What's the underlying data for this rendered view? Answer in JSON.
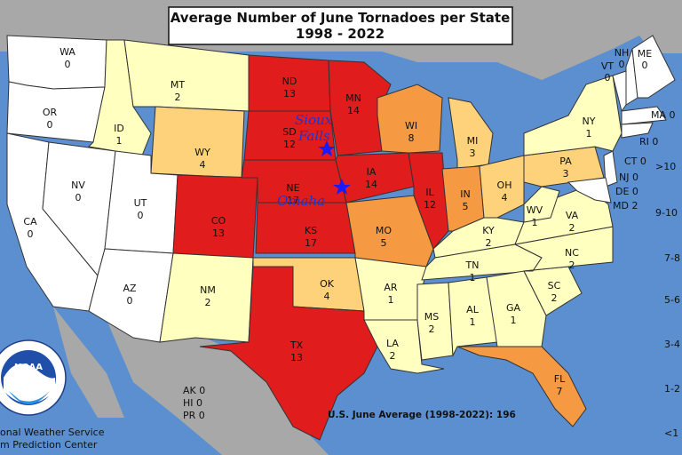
{
  "title": {
    "line1": "Average Number of June Tornadoes per State",
    "line2": "1998 - 2022"
  },
  "national_average": "U.S. June Average (1998-2022): 196",
  "cities": [
    {
      "name": "Sioux",
      "id": "sioux-falls-label-1"
    },
    {
      "name": "Falls",
      "id": "sioux-falls-label-2"
    },
    {
      "name": "Omaha",
      "id": "omaha-label"
    }
  ],
  "territories": [
    {
      "code": "AK",
      "value": "0"
    },
    {
      "code": "HI",
      "value": "0"
    },
    {
      "code": "PR",
      "value": "0"
    }
  ],
  "northeast_labels": [
    {
      "code": "VT",
      "value": "0"
    },
    {
      "code": "NH",
      "value": "0"
    },
    {
      "code": "ME",
      "value": "0"
    },
    {
      "code": "MA",
      "value": "0"
    },
    {
      "code": "RI",
      "value": "0"
    },
    {
      "code": "CT",
      "value": "0"
    },
    {
      "code": "NJ",
      "value": "0"
    },
    {
      "code": "DE",
      "value": "0"
    },
    {
      "code": "MD",
      "value": "2"
    }
  ],
  "legend": [
    ">10",
    "9-10",
    "7-8",
    "5-6",
    "3-4",
    "1-2",
    "<1"
  ],
  "agency": {
    "line1": "onal Weather Service",
    "line2": "m Prediction Center",
    "logo_text": "NOAA",
    "ring_text": "NATIONAL OCEANIC AND ATMOSPHERIC ADMINISTRATION - U.S. DEPARTMENT OF COMMERCE"
  },
  "colors": {
    "water": "#5b8fcf",
    "land": "#a8a8a8",
    "zero": "#ffffff",
    "low": "#ffffc0",
    "mid": "#fdd27a",
    "high": "#f59a42",
    "top": "#e01c1c"
  },
  "states": [
    {
      "code": "WA",
      "value": "0"
    },
    {
      "code": "OR",
      "value": "0"
    },
    {
      "code": "CA",
      "value": "0"
    },
    {
      "code": "NV",
      "value": "0"
    },
    {
      "code": "ID",
      "value": "1"
    },
    {
      "code": "MT",
      "value": "2"
    },
    {
      "code": "WY",
      "value": "4"
    },
    {
      "code": "UT",
      "value": "0"
    },
    {
      "code": "AZ",
      "value": "0"
    },
    {
      "code": "CO",
      "value": "13"
    },
    {
      "code": "NM",
      "value": "2"
    },
    {
      "code": "ND",
      "value": "13"
    },
    {
      "code": "SD",
      "value": "12"
    },
    {
      "code": "NE",
      "value": "17"
    },
    {
      "code": "KS",
      "value": "17"
    },
    {
      "code": "OK",
      "value": "4"
    },
    {
      "code": "TX",
      "value": "13"
    },
    {
      "code": "MN",
      "value": "14"
    },
    {
      "code": "IA",
      "value": "14"
    },
    {
      "code": "MO",
      "value": "5"
    },
    {
      "code": "AR",
      "value": "1"
    },
    {
      "code": "LA",
      "value": "2"
    },
    {
      "code": "WI",
      "value": "8"
    },
    {
      "code": "IL",
      "value": "12"
    },
    {
      "code": "MI",
      "value": "3"
    },
    {
      "code": "IN",
      "value": "5"
    },
    {
      "code": "OH",
      "value": "4"
    },
    {
      "code": "KY",
      "value": "2"
    },
    {
      "code": "TN",
      "value": "1"
    },
    {
      "code": "MS",
      "value": "2"
    },
    {
      "code": "AL",
      "value": "1"
    },
    {
      "code": "GA",
      "value": "1"
    },
    {
      "code": "FL",
      "value": "7"
    },
    {
      "code": "SC",
      "value": "2"
    },
    {
      "code": "NC",
      "value": "2"
    },
    {
      "code": "VA",
      "value": "2"
    },
    {
      "code": "WV",
      "value": "1"
    },
    {
      "code": "PA",
      "value": "3"
    },
    {
      "code": "NY",
      "value": "1"
    }
  ]
}
